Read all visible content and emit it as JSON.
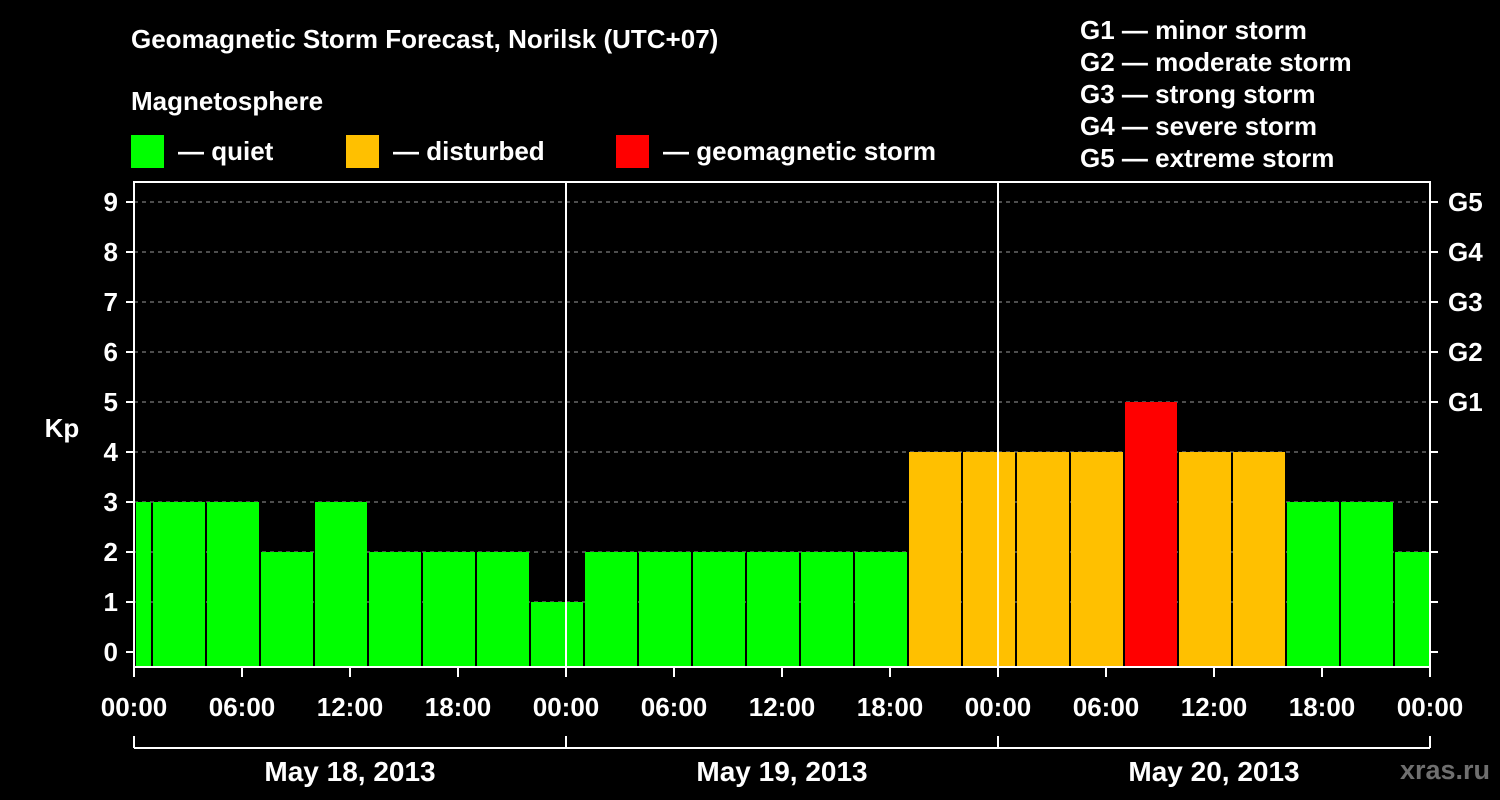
{
  "title": "Geomagnetic Storm Forecast, Norilsk (UTC+07)",
  "magnetosphere_label": "Magnetosphere",
  "legend": [
    {
      "label": "— quiet",
      "color": "#00ff00"
    },
    {
      "label": "— disturbed",
      "color": "#ffc000"
    },
    {
      "label": "— geomagnetic storm",
      "color": "#ff0000"
    }
  ],
  "storm_scale": [
    "G1 — minor storm",
    "G2 — moderate storm",
    "G3 — strong storm",
    "G4 — severe storm",
    "G5 — extreme storm"
  ],
  "watermark": "xras.ru",
  "chart_data": {
    "type": "bar",
    "title": "Geomagnetic Storm Forecast, Norilsk (UTC+07)",
    "ylabel": "Kp",
    "ylim": [
      0,
      9
    ],
    "y_ticks": [
      "0",
      "1",
      "2",
      "3",
      "4",
      "5",
      "6",
      "7",
      "8",
      "9"
    ],
    "right_axis_ticks": [
      {
        "kp": 5,
        "label": "G1"
      },
      {
        "kp": 6,
        "label": "G2"
      },
      {
        "kp": 7,
        "label": "G3"
      },
      {
        "kp": 8,
        "label": "G4"
      },
      {
        "kp": 9,
        "label": "G5"
      }
    ],
    "grid": true,
    "x_tick_labels": [
      "00:00",
      "06:00",
      "12:00",
      "18:00",
      "00:00",
      "06:00",
      "12:00",
      "18:00",
      "00:00",
      "06:00",
      "12:00",
      "18:00",
      "00:00"
    ],
    "dates": [
      "May 18, 2013",
      "May 19, 2013",
      "May 20, 2013"
    ],
    "x_start_hour": 0,
    "x_end_hour": 72,
    "colors": {
      "quiet": "#00ff00",
      "disturbed": "#ffc000",
      "storm": "#ff0000"
    },
    "bars": [
      {
        "start_hour": 0,
        "end_hour": 1,
        "kp": 3,
        "status": "quiet"
      },
      {
        "start_hour": 1,
        "end_hour": 4,
        "kp": 3,
        "status": "quiet"
      },
      {
        "start_hour": 4,
        "end_hour": 7,
        "kp": 3,
        "status": "quiet"
      },
      {
        "start_hour": 7,
        "end_hour": 10,
        "kp": 2,
        "status": "quiet"
      },
      {
        "start_hour": 10,
        "end_hour": 13,
        "kp": 3,
        "status": "quiet"
      },
      {
        "start_hour": 13,
        "end_hour": 16,
        "kp": 2,
        "status": "quiet"
      },
      {
        "start_hour": 16,
        "end_hour": 19,
        "kp": 2,
        "status": "quiet"
      },
      {
        "start_hour": 19,
        "end_hour": 22,
        "kp": 2,
        "status": "quiet"
      },
      {
        "start_hour": 22,
        "end_hour": 25,
        "kp": 1,
        "status": "quiet"
      },
      {
        "start_hour": 25,
        "end_hour": 28,
        "kp": 2,
        "status": "quiet"
      },
      {
        "start_hour": 28,
        "end_hour": 31,
        "kp": 2,
        "status": "quiet"
      },
      {
        "start_hour": 31,
        "end_hour": 34,
        "kp": 2,
        "status": "quiet"
      },
      {
        "start_hour": 34,
        "end_hour": 37,
        "kp": 2,
        "status": "quiet"
      },
      {
        "start_hour": 37,
        "end_hour": 40,
        "kp": 2,
        "status": "quiet"
      },
      {
        "start_hour": 40,
        "end_hour": 43,
        "kp": 2,
        "status": "quiet"
      },
      {
        "start_hour": 43,
        "end_hour": 46,
        "kp": 4,
        "status": "disturbed"
      },
      {
        "start_hour": 46,
        "end_hour": 49,
        "kp": 4,
        "status": "disturbed"
      },
      {
        "start_hour": 49,
        "end_hour": 52,
        "kp": 4,
        "status": "disturbed"
      },
      {
        "start_hour": 52,
        "end_hour": 55,
        "kp": 4,
        "status": "disturbed"
      },
      {
        "start_hour": 55,
        "end_hour": 58,
        "kp": 5,
        "status": "storm"
      },
      {
        "start_hour": 58,
        "end_hour": 61,
        "kp": 4,
        "status": "disturbed"
      },
      {
        "start_hour": 61,
        "end_hour": 64,
        "kp": 4,
        "status": "disturbed"
      },
      {
        "start_hour": 64,
        "end_hour": 67,
        "kp": 3,
        "status": "quiet"
      },
      {
        "start_hour": 67,
        "end_hour": 70,
        "kp": 3,
        "status": "quiet"
      },
      {
        "start_hour": 70,
        "end_hour": 72,
        "kp": 2,
        "status": "quiet"
      }
    ]
  }
}
